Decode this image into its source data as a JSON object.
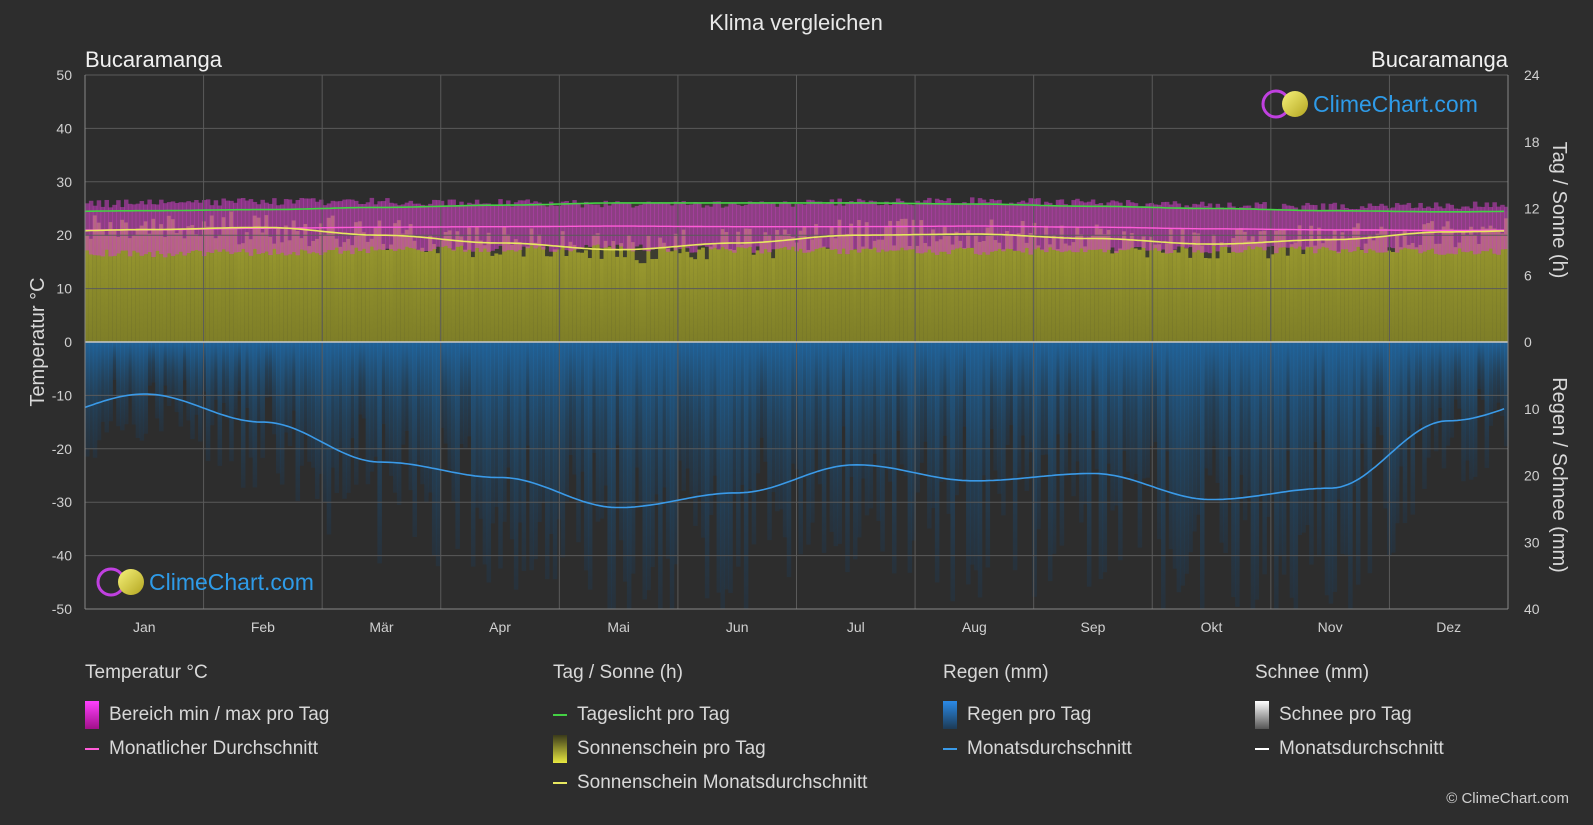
{
  "chart_data": {
    "type": "area",
    "title": "Klima vergleichen",
    "location_left": "Bucaramanga",
    "location_right": "Bucaramanga",
    "months": [
      "Jan",
      "Feb",
      "Mär",
      "Apr",
      "Mai",
      "Jun",
      "Jul",
      "Aug",
      "Sep",
      "Okt",
      "Nov",
      "Dez"
    ],
    "y_left": {
      "label": "Temperatur °C",
      "ylim": [
        -50,
        50
      ],
      "ticks": [
        50,
        40,
        30,
        20,
        10,
        0,
        -10,
        -20,
        -30,
        -40,
        -50
      ]
    },
    "y_right_top": {
      "label": "Tag / Sonne (h)",
      "ylim": [
        0,
        24
      ],
      "ticks": [
        24,
        18,
        12,
        6,
        0
      ]
    },
    "y_right_bottom": {
      "label": "Regen / Schnee (mm)",
      "ylim": [
        0,
        40
      ],
      "ticks": [
        0,
        10,
        20,
        30,
        40
      ]
    },
    "grid": true,
    "series": [
      {
        "name": "Tageslicht pro Tag",
        "unit": "h",
        "color": "#44d144",
        "values": [
          11.8,
          11.9,
          12.1,
          12.3,
          12.5,
          12.5,
          12.5,
          12.4,
          12.2,
          12.0,
          11.8,
          11.7
        ]
      },
      {
        "name": "Sonnenschein Monatsdurchschnitt",
        "unit": "h",
        "color": "#e8e860",
        "values": [
          10.1,
          10.3,
          9.6,
          8.9,
          8.3,
          8.9,
          9.6,
          9.7,
          9.3,
          8.8,
          9.2,
          9.9
        ]
      },
      {
        "name": "Monatlicher Durchschnitt",
        "unit": "°C",
        "color": "#ff5cd8",
        "values": [
          21.0,
          21.3,
          21.5,
          21.6,
          21.7,
          21.6,
          21.6,
          21.7,
          21.5,
          21.2,
          21.0,
          20.9
        ]
      },
      {
        "name": "Bereich min / max pro Tag",
        "unit": "°C",
        "min": [
          16.5,
          16.8,
          17.2,
          17.5,
          17.6,
          17.3,
          17.0,
          17.0,
          17.1,
          17.3,
          17.3,
          16.9
        ],
        "max": [
          26.0,
          26.3,
          26.3,
          26.1,
          25.8,
          25.8,
          26.2,
          26.4,
          26.2,
          25.6,
          25.4,
          25.6
        ]
      },
      {
        "name": "Regen Monatsdurchschnitt",
        "unit": "mm",
        "color": "#3a9ae8",
        "values": [
          7.8,
          12.0,
          18.0,
          20.3,
          24.8,
          22.6,
          18.4,
          20.8,
          19.7,
          23.6,
          21.9,
          11.8
        ]
      }
    ]
  },
  "legend": {
    "temp": {
      "title": "Temperatur °C",
      "items": [
        "Bereich min / max pro Tag",
        "Monatlicher Durchschnitt"
      ]
    },
    "sun": {
      "title": "Tag / Sonne (h)",
      "items": [
        "Tageslicht pro Tag",
        "Sonnenschein pro Tag",
        "Sonnenschein Monatsdurchschnitt"
      ]
    },
    "rain": {
      "title": "Regen (mm)",
      "items": [
        "Regen pro Tag",
        "Monatsdurchschnitt"
      ]
    },
    "snow": {
      "title": "Schnee (mm)",
      "items": [
        "Schnee pro Tag",
        "Monatsdurchschnitt"
      ]
    }
  },
  "brand": {
    "name": "ClimeChart.com",
    "copyright": "© ClimeChart.com"
  }
}
